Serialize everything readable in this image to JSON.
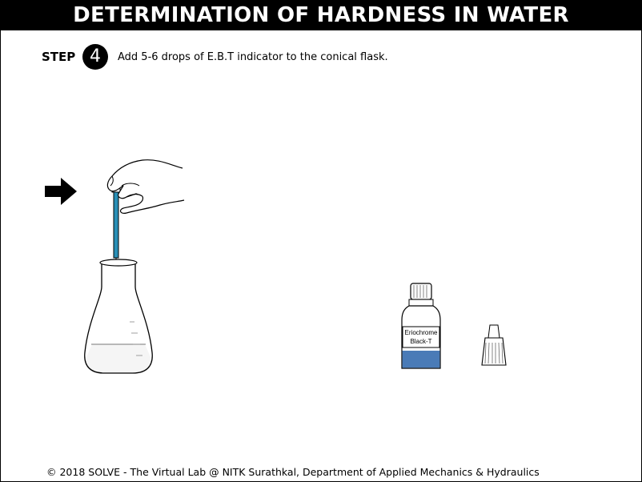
{
  "header": {
    "title": "DETERMINATION OF HARDNESS IN WATER"
  },
  "step": {
    "label": "STEP",
    "number": "4",
    "instruction": "Add 5-6 drops of E.B.T indicator to the conical flask."
  },
  "scene": {
    "bottle_label_line1": "Eriochrome",
    "bottle_label_line2": "Black-T",
    "indicator_color": "#4a7bb7",
    "dropper_liquid_color": "#2a8fb6",
    "icons": [
      "right-arrow-icon",
      "hand-dropper-icon",
      "conical-flask-icon",
      "indicator-bottle-icon",
      "bottle-cap-icon"
    ]
  },
  "footer": {
    "text": "© 2018 SOLVE - The Virtual Lab @ NITK Surathkal, Department of Applied Mechanics & Hydraulics"
  }
}
